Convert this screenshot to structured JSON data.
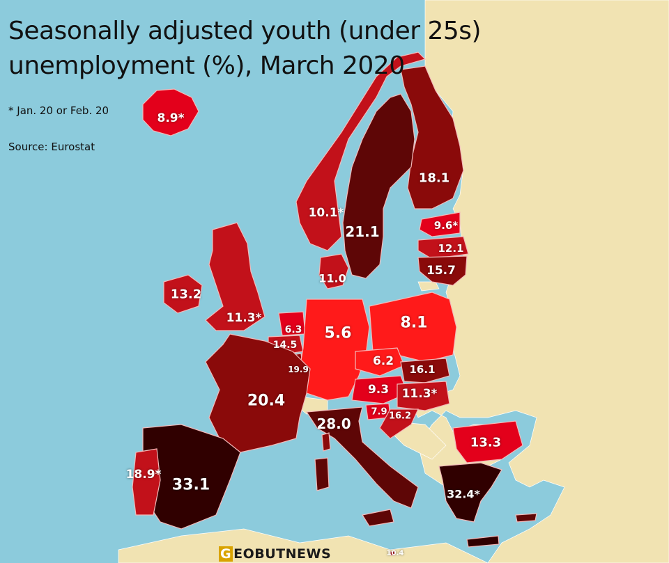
{
  "title": {
    "line1": "Seasonally adjusted youth (under 25s)",
    "line2": "unemployment (%), March 2020"
  },
  "footnote": "* Jan. 20 or Feb. 20",
  "source": "Source: Eurostat",
  "logo": {
    "first": "G",
    "rest": "EOBUTNEWS"
  },
  "colors": {
    "sea": "#8ccbdc",
    "no_data_land": "#f1e3b2",
    "bright_red": "#ff1a1a",
    "red": "#e3001b",
    "mid_red": "#c2111a",
    "dark_red": "#8a0a0a",
    "very_dark_red": "#5e0606",
    "darkest": "#300000"
  },
  "values": {
    "iceland": "8.9*",
    "finland": "18.1",
    "norway": "10.1*",
    "sweden": "21.1",
    "estonia": "9.6*",
    "latvia": "12.1",
    "lithuania": "15.7",
    "denmark": "11.0",
    "ireland": "13.2",
    "uk": "11.3*",
    "netherlands": "6.3",
    "belgium": "14.5",
    "luxembourg": "19.9",
    "germany": "5.6",
    "poland": "8.1",
    "czechia": "6.2",
    "slovakia": "16.1",
    "austria": "9.3",
    "hungary": "11.3*",
    "slovenia": "7.9",
    "croatia": "16.2",
    "france": "20.4",
    "italy": "28.0",
    "bulgaria": "13.3",
    "spain": "33.1",
    "portugal": "18.9*",
    "greece": "32.4*",
    "malta": "10.4"
  }
}
